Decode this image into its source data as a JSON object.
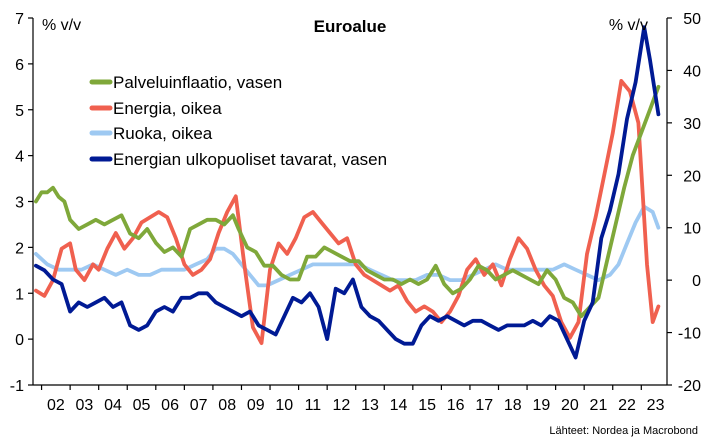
{
  "chart_data": {
    "type": "line",
    "title": "Euroalue",
    "left_unit": "% v/v",
    "right_unit": "% v/v",
    "source": "Lähteet: Nordea ja Macrobond",
    "x_range": [
      2001.7,
      2023.9
    ],
    "x_tick_labels": [
      "02",
      "03",
      "04",
      "05",
      "06",
      "07",
      "08",
      "09",
      "10",
      "11",
      "12",
      "13",
      "14",
      "15",
      "16",
      "17",
      "18",
      "19",
      "20",
      "21",
      "22",
      "23"
    ],
    "x_tick_years": [
      2002,
      2003,
      2004,
      2005,
      2006,
      2007,
      2008,
      2009,
      2010,
      2011,
      2012,
      2013,
      2014,
      2015,
      2016,
      2017,
      2018,
      2019,
      2020,
      2021,
      2022,
      2023
    ],
    "left_axis": {
      "min": -1,
      "max": 7,
      "ticks": [
        "-1",
        "0",
        "1",
        "2",
        "3",
        "4",
        "5",
        "6",
        "7"
      ]
    },
    "right_axis": {
      "min": -20,
      "max": 50,
      "ticks": [
        "-20",
        "-10",
        "0",
        "10",
        "20",
        "30",
        "40",
        "50"
      ]
    },
    "legend_position": "upper-left",
    "series": [
      {
        "name": "Palveluinflaatio, vasen",
        "axis": "left",
        "color": "#7fa83a",
        "x": [
          2001.8,
          2002.0,
          2002.2,
          2002.4,
          2002.6,
          2002.8,
          2003.0,
          2003.3,
          2003.6,
          2003.9,
          2004.2,
          2004.5,
          2004.8,
          2005.1,
          2005.4,
          2005.7,
          2006.0,
          2006.3,
          2006.6,
          2006.9,
          2007.2,
          2007.5,
          2007.8,
          2008.1,
          2008.4,
          2008.7,
          2008.9,
          2009.2,
          2009.5,
          2009.8,
          2010.1,
          2010.4,
          2010.7,
          2011.0,
          2011.3,
          2011.6,
          2011.9,
          2012.2,
          2012.5,
          2012.8,
          2013.1,
          2013.4,
          2013.7,
          2014.0,
          2014.3,
          2014.6,
          2014.9,
          2015.2,
          2015.5,
          2015.8,
          2016.1,
          2016.4,
          2016.7,
          2017.0,
          2017.3,
          2017.6,
          2017.9,
          2018.2,
          2018.5,
          2018.8,
          2019.1,
          2019.4,
          2019.7,
          2020.0,
          2020.3,
          2020.6,
          2020.9,
          2021.2,
          2021.5,
          2021.8,
          2022.1,
          2022.4,
          2022.7,
          2023.0,
          2023.3,
          2023.6
        ],
        "y": [
          3.0,
          3.2,
          3.2,
          3.3,
          3.1,
          3.0,
          2.6,
          2.4,
          2.5,
          2.6,
          2.5,
          2.6,
          2.7,
          2.3,
          2.2,
          2.4,
          2.1,
          1.9,
          2.0,
          1.8,
          2.4,
          2.5,
          2.6,
          2.6,
          2.5,
          2.7,
          2.4,
          2.0,
          1.9,
          1.6,
          1.6,
          1.4,
          1.3,
          1.3,
          1.8,
          1.8,
          2.0,
          1.9,
          1.8,
          1.7,
          1.7,
          1.5,
          1.4,
          1.3,
          1.3,
          1.2,
          1.3,
          1.2,
          1.3,
          1.6,
          1.2,
          1.0,
          1.1,
          1.3,
          1.6,
          1.5,
          1.3,
          1.4,
          1.5,
          1.4,
          1.3,
          1.2,
          1.5,
          1.3,
          0.9,
          0.8,
          0.5,
          0.7,
          0.9,
          1.7,
          2.5,
          3.3,
          4.0,
          4.5,
          5.0,
          5.5
        ]
      },
      {
        "name": "Energia, oikea",
        "axis": "right",
        "color": "#f0604f",
        "x": [
          2001.8,
          2002.1,
          2002.4,
          2002.7,
          2003.0,
          2003.2,
          2003.5,
          2003.8,
          2004.0,
          2004.3,
          2004.6,
          2004.9,
          2005.2,
          2005.5,
          2005.8,
          2006.1,
          2006.4,
          2006.7,
          2007.0,
          2007.3,
          2007.6,
          2007.9,
          2008.2,
          2008.5,
          2008.8,
          2009.1,
          2009.4,
          2009.7,
          2010.0,
          2010.3,
          2010.6,
          2010.9,
          2011.2,
          2011.5,
          2011.8,
          2012.1,
          2012.4,
          2012.7,
          2013.0,
          2013.3,
          2013.6,
          2013.9,
          2014.2,
          2014.5,
          2014.8,
          2015.1,
          2015.4,
          2015.7,
          2016.0,
          2016.3,
          2016.6,
          2016.9,
          2017.2,
          2017.5,
          2017.8,
          2018.1,
          2018.4,
          2018.7,
          2019.0,
          2019.3,
          2019.6,
          2019.9,
          2020.2,
          2020.5,
          2020.8,
          2021.1,
          2021.4,
          2021.7,
          2022.0,
          2022.3,
          2022.6,
          2022.9,
          2023.2,
          2023.4,
          2023.6
        ],
        "y": [
          -2,
          -3,
          0,
          6,
          7,
          2,
          0,
          3,
          2,
          6,
          9,
          6,
          8,
          11,
          12,
          13,
          12,
          8,
          3,
          1,
          2,
          4,
          9,
          13,
          16,
          3,
          -9,
          -12,
          2,
          7,
          5,
          8,
          12,
          13,
          11,
          9,
          7,
          8,
          3,
          1,
          0,
          -1,
          -2,
          -1,
          -4,
          -6,
          -5,
          -6,
          -8,
          -6,
          -3,
          2,
          4,
          1,
          3,
          -1,
          4,
          8,
          6,
          2,
          -1,
          -3,
          -8,
          -11,
          -8,
          5,
          12,
          20,
          28,
          38,
          36,
          30,
          3,
          -8,
          -5
        ]
      },
      {
        "name": "Ruoka, oikea",
        "axis": "right",
        "color": "#9ec9f2",
        "x": [
          2001.8,
          2002.2,
          2002.6,
          2003.0,
          2003.4,
          2003.8,
          2004.2,
          2004.6,
          2005.0,
          2005.4,
          2005.8,
          2006.2,
          2006.6,
          2007.0,
          2007.4,
          2007.8,
          2008.1,
          2008.4,
          2008.7,
          2009.0,
          2009.3,
          2009.6,
          2009.9,
          2010.3,
          2010.7,
          2011.1,
          2011.5,
          2011.9,
          2012.3,
          2012.7,
          2013.1,
          2013.5,
          2013.9,
          2014.3,
          2014.7,
          2015.1,
          2015.5,
          2015.9,
          2016.3,
          2016.7,
          2017.1,
          2017.5,
          2017.9,
          2018.3,
          2018.7,
          2019.1,
          2019.5,
          2019.9,
          2020.3,
          2020.7,
          2021.1,
          2021.5,
          2021.9,
          2022.2,
          2022.5,
          2022.8,
          2023.1,
          2023.4,
          2023.6
        ],
        "y": [
          5,
          3,
          2,
          2,
          2,
          3,
          2,
          1,
          2,
          1,
          1,
          2,
          2,
          2,
          3,
          4,
          6,
          6,
          5,
          3,
          1,
          -1,
          -1,
          0,
          1,
          2,
          3,
          3,
          3,
          3,
          3,
          2,
          1,
          0,
          0,
          0,
          1,
          1,
          0,
          0,
          1,
          2,
          3,
          2,
          2,
          2,
          2,
          2,
          3,
          2,
          1,
          0,
          1,
          3,
          7,
          11,
          14,
          13,
          10
        ]
      },
      {
        "name": "Energian ulkopuoliset tavarat, vasen",
        "axis": "left",
        "color": "#001a94",
        "x": [
          2001.8,
          2002.1,
          2002.4,
          2002.7,
          2003.0,
          2003.3,
          2003.6,
          2003.9,
          2004.2,
          2004.5,
          2004.8,
          2005.1,
          2005.4,
          2005.7,
          2006.0,
          2006.3,
          2006.6,
          2006.9,
          2007.2,
          2007.5,
          2007.8,
          2008.1,
          2008.4,
          2008.7,
          2009.0,
          2009.3,
          2009.6,
          2009.9,
          2010.2,
          2010.5,
          2010.8,
          2011.1,
          2011.4,
          2011.7,
          2012.0,
          2012.3,
          2012.6,
          2012.9,
          2013.2,
          2013.5,
          2013.8,
          2014.1,
          2014.4,
          2014.7,
          2015.0,
          2015.3,
          2015.6,
          2015.9,
          2016.2,
          2016.5,
          2016.8,
          2017.1,
          2017.4,
          2017.7,
          2018.0,
          2018.3,
          2018.6,
          2018.9,
          2019.2,
          2019.5,
          2019.8,
          2020.1,
          2020.4,
          2020.7,
          2021.0,
          2021.3,
          2021.6,
          2021.9,
          2022.2,
          2022.5,
          2022.8,
          2023.1,
          2023.3,
          2023.6
        ],
        "y": [
          1.6,
          1.5,
          1.3,
          1.2,
          0.6,
          0.8,
          0.7,
          0.8,
          0.9,
          0.7,
          0.8,
          0.3,
          0.2,
          0.3,
          0.6,
          0.7,
          0.6,
          0.9,
          0.9,
          1.0,
          1.0,
          0.8,
          0.7,
          0.6,
          0.5,
          0.6,
          0.3,
          0.2,
          0.1,
          0.5,
          0.9,
          0.8,
          1.0,
          0.7,
          0.0,
          1.1,
          1.0,
          1.3,
          0.7,
          0.5,
          0.4,
          0.2,
          0.0,
          -0.1,
          -0.1,
          0.3,
          0.5,
          0.4,
          0.5,
          0.4,
          0.3,
          0.4,
          0.4,
          0.3,
          0.2,
          0.3,
          0.3,
          0.3,
          0.4,
          0.3,
          0.5,
          0.4,
          0.0,
          -0.4,
          0.4,
          0.8,
          2.2,
          2.8,
          3.6,
          4.8,
          5.6,
          6.8,
          6.1,
          4.9
        ]
      }
    ]
  }
}
